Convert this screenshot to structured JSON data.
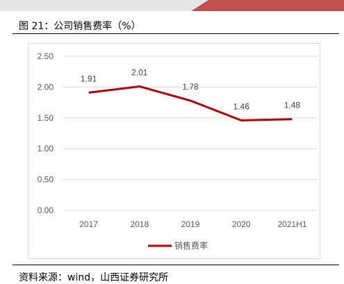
{
  "figure_title": "图 21：公司销售费率（%）",
  "source_text": "资料来源：wind，山西证券研究所",
  "colors": {
    "line": "#c00000",
    "grid": "#d9d9d9",
    "banner_red": "#c0504d"
  },
  "chart_data": {
    "type": "line",
    "categories": [
      "2017",
      "2018",
      "2019",
      "2020",
      "2021H1"
    ],
    "series": [
      {
        "name": "销售费率",
        "values": [
          1.91,
          2.01,
          1.78,
          1.46,
          1.48
        ],
        "labels": [
          "1.91",
          "2.01",
          "1.78",
          "1.46",
          "1.48"
        ]
      }
    ],
    "y_ticks": [
      "0.00",
      "0.50",
      "1.00",
      "1.50",
      "2.00",
      "2.50"
    ],
    "ylim": [
      0,
      2.5
    ],
    "grid": true,
    "legend_position": "bottom",
    "title": "",
    "xlabel": "",
    "ylabel": ""
  }
}
